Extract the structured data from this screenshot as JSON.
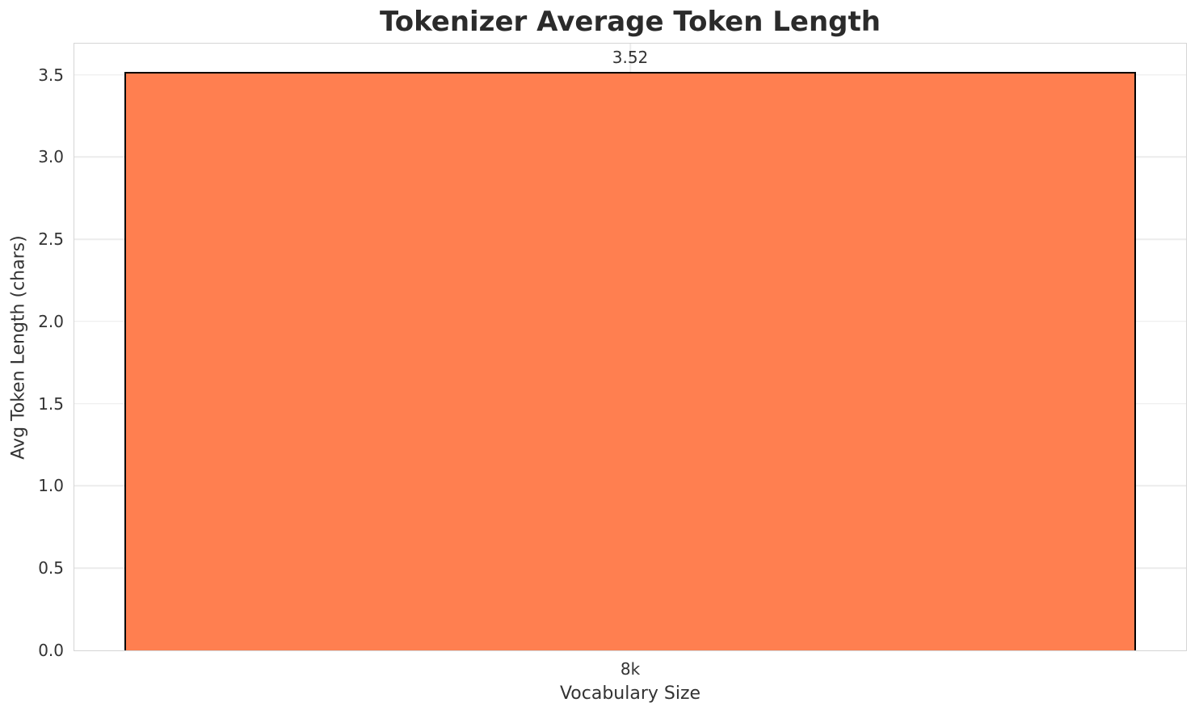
{
  "chart_data": {
    "type": "bar",
    "title": "Tokenizer Average Token Length",
    "xlabel": "Vocabulary Size",
    "ylabel": "Avg Token Length (chars)",
    "categories": [
      "8k"
    ],
    "values": [
      3.52
    ],
    "value_labels": [
      "3.52"
    ],
    "ylim": [
      0,
      3.69
    ],
    "yticks": [
      0.0,
      0.5,
      1.0,
      1.5,
      2.0,
      2.5,
      3.0,
      3.5
    ],
    "ytick_labels": [
      "0.0",
      "0.5",
      "1.0",
      "1.5",
      "2.0",
      "2.5",
      "3.0",
      "3.5"
    ],
    "grid": true,
    "legend": false,
    "bar_color": "#FF7F50",
    "bar_edge_color": "#000000",
    "grid_color": "#ECECEC",
    "frame_color": "#D5D5D5",
    "background_color": "#FFFFFF",
    "title_color": "#2B2B2B",
    "text_color": "#333333"
  }
}
